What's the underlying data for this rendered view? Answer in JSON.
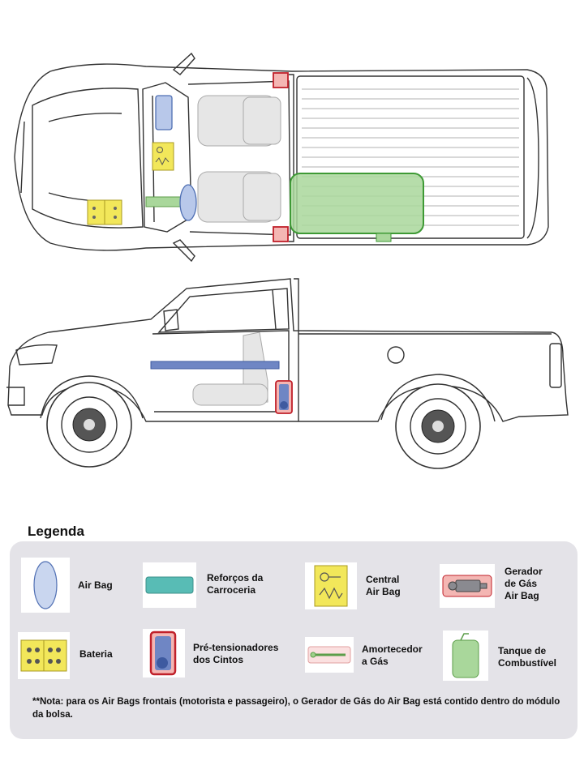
{
  "legend": {
    "title": "Legenda",
    "items": [
      {
        "key": "airbag",
        "label": "Air Bag",
        "icon": "airbag-icon",
        "color": "#c9d6ef"
      },
      {
        "key": "reinforcement",
        "label": "Reforços da\nCarroceria",
        "icon": "body-reinforcement-icon",
        "color": "#58bcb5"
      },
      {
        "key": "central",
        "label": "Central\nAir Bag",
        "icon": "airbag-central-icon",
        "color": "#f2e75a"
      },
      {
        "key": "generator",
        "label": "Gerador\nde Gás\nAir Bag",
        "icon": "gas-generator-icon",
        "color": "#f4b6b3"
      },
      {
        "key": "battery",
        "label": "Bateria",
        "icon": "battery-icon",
        "color": "#f2e75a"
      },
      {
        "key": "pretensioner",
        "label": "Pré-tensionadores\n dos Cintos",
        "icon": "seatbelt-pretensioner-icon",
        "color": "#6f86c4"
      },
      {
        "key": "damper",
        "label": "Amortecedor\na Gás",
        "icon": "gas-damper-icon",
        "color": "#9fd08a"
      },
      {
        "key": "fuel",
        "label": "Tanque de\nCombustível",
        "icon": "fuel-tank-icon",
        "color": "#a9d79b"
      }
    ]
  },
  "note": "**Nota: para os Air Bags frontais (motorista e passageiro), o Gerador de Gás do Air Bag está contido dentro do módulo da bolsa."
}
